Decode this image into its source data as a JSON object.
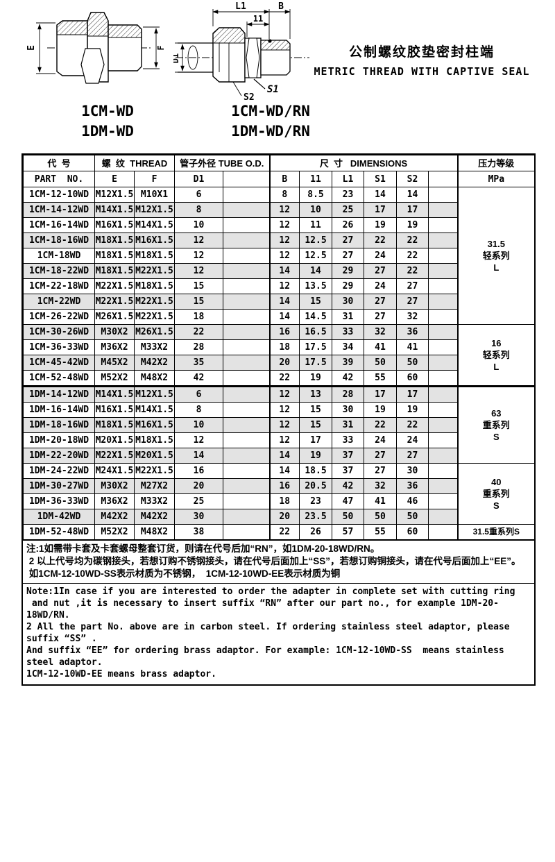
{
  "title": {
    "zh": "公制螺纹胶垫密封柱端",
    "en": "METRIC THREAD WITH CAPTIVE SEAL"
  },
  "drawings": {
    "left_models": [
      "1CM-WD",
      "1DM-WD"
    ],
    "right_models": [
      "1CM-WD/RN",
      "1DM-WD/RN"
    ],
    "dim_labels": {
      "e": "E",
      "f": "F",
      "l1": "L1",
      "l1_small": "11",
      "b": "B",
      "d1": "D1",
      "s1": "S1",
      "s2": "S2"
    }
  },
  "table": {
    "header": {
      "part_no_zh": "代  号",
      "part_no_en": "PART  NO.",
      "thread": "螺  纹  THREAD",
      "tube_od": "管子外径 TUBE O.D.",
      "dimensions": "尺  寸   DIMENSIONS",
      "pressure_zh": "压力等级",
      "pressure_en": "MPa",
      "sub": [
        "E",
        "F",
        "D1",
        "",
        "B",
        "11",
        "L1",
        "S1",
        "S2",
        ""
      ]
    },
    "rows": [
      {
        "part_no": "1CM-12-10WD",
        "e": "M12X1.5",
        "f": "M10X1",
        "d1": "6",
        "b": "8",
        "l1s": "8.5",
        "l1": "23",
        "s1": "14",
        "s2": "14"
      },
      {
        "part_no": "1CM-14-12WD",
        "e": "M14X1.5",
        "f": "M12X1.5",
        "d1": "8",
        "b": "12",
        "l1s": "10",
        "l1": "25",
        "s1": "17",
        "s2": "17"
      },
      {
        "part_no": "1CM-16-14WD",
        "e": "M16X1.5",
        "f": "M14X1.5",
        "d1": "10",
        "b": "12",
        "l1s": "11",
        "l1": "26",
        "s1": "19",
        "s2": "19"
      },
      {
        "part_no": "1CM-18-16WD",
        "e": "M18X1.5",
        "f": "M16X1.5",
        "d1": "12",
        "b": "12",
        "l1s": "12.5",
        "l1": "27",
        "s1": "22",
        "s2": "22"
      },
      {
        "part_no": "1CM-18WD",
        "e": "M18X1.5",
        "f": "M18X1.5",
        "d1": "12",
        "b": "12",
        "l1s": "12.5",
        "l1": "27",
        "s1": "24",
        "s2": "22"
      },
      {
        "part_no": "1CM-18-22WD",
        "e": "M18X1.5",
        "f": "M22X1.5",
        "d1": "12",
        "b": "14",
        "l1s": "14",
        "l1": "29",
        "s1": "27",
        "s2": "22"
      },
      {
        "part_no": "1CM-22-18WD",
        "e": "M22X1.5",
        "f": "M18X1.5",
        "d1": "15",
        "b": "12",
        "l1s": "13.5",
        "l1": "29",
        "s1": "24",
        "s2": "27"
      },
      {
        "part_no": "1CM-22WD",
        "e": "M22X1.5",
        "f": "M22X1.5",
        "d1": "15",
        "b": "14",
        "l1s": "15",
        "l1": "30",
        "s1": "27",
        "s2": "27"
      },
      {
        "part_no": "1CM-26-22WD",
        "e": "M26X1.5",
        "f": "M22X1.5",
        "d1": "18",
        "b": "14",
        "l1s": "14.5",
        "l1": "31",
        "s1": "27",
        "s2": "32"
      },
      {
        "part_no": "1CM-30-26WD",
        "e": "M30X2",
        "f": "M26X1.5",
        "d1": "22",
        "b": "16",
        "l1s": "16.5",
        "l1": "33",
        "s1": "32",
        "s2": "36"
      },
      {
        "part_no": "1CM-36-33WD",
        "e": "M36X2",
        "f": "M33X2",
        "d1": "28",
        "b": "18",
        "l1s": "17.5",
        "l1": "34",
        "s1": "41",
        "s2": "41"
      },
      {
        "part_no": "1CM-45-42WD",
        "e": "M45X2",
        "f": "M42X2",
        "d1": "35",
        "b": "20",
        "l1s": "17.5",
        "l1": "39",
        "s1": "50",
        "s2": "50"
      },
      {
        "part_no": "1CM-52-48WD",
        "e": "M52X2",
        "f": "M48X2",
        "d1": "42",
        "b": "22",
        "l1s": "19",
        "l1": "42",
        "s1": "55",
        "s2": "60"
      },
      {
        "part_no": "1DM-14-12WD",
        "e": "M14X1.5",
        "f": "M12X1.5",
        "d1": "6",
        "b": "12",
        "l1s": "13",
        "l1": "28",
        "s1": "17",
        "s2": "17"
      },
      {
        "part_no": "1DM-16-14WD",
        "e": "M16X1.5",
        "f": "M14X1.5",
        "d1": "8",
        "b": "12",
        "l1s": "15",
        "l1": "30",
        "s1": "19",
        "s2": "19"
      },
      {
        "part_no": "1DM-18-16WD",
        "e": "M18X1.5",
        "f": "M16X1.5",
        "d1": "10",
        "b": "12",
        "l1s": "15",
        "l1": "31",
        "s1": "22",
        "s2": "22"
      },
      {
        "part_no": "1DM-20-18WD",
        "e": "M20X1.5",
        "f": "M18X1.5",
        "d1": "12",
        "b": "12",
        "l1s": "17",
        "l1": "33",
        "s1": "24",
        "s2": "24"
      },
      {
        "part_no": "1DM-22-20WD",
        "e": "M22X1.5",
        "f": "M20X1.5",
        "d1": "14",
        "b": "14",
        "l1s": "19",
        "l1": "37",
        "s1": "27",
        "s2": "27"
      },
      {
        "part_no": "1DM-24-22WD",
        "e": "M24X1.5",
        "f": "M22X1.5",
        "d1": "16",
        "b": "14",
        "l1s": "18.5",
        "l1": "37",
        "s1": "27",
        "s2": "30"
      },
      {
        "part_no": "1DM-30-27WD",
        "e": "M30X2",
        "f": "M27X2",
        "d1": "20",
        "b": "16",
        "l1s": "20.5",
        "l1": "42",
        "s1": "32",
        "s2": "36"
      },
      {
        "part_no": "1DM-36-33WD",
        "e": "M36X2",
        "f": "M33X2",
        "d1": "25",
        "b": "18",
        "l1s": "23",
        "l1": "47",
        "s1": "41",
        "s2": "46"
      },
      {
        "part_no": "1DM-42WD",
        "e": "M42X2",
        "f": "M42X2",
        "d1": "30",
        "b": "20",
        "l1s": "23.5",
        "l1": "50",
        "s1": "50",
        "s2": "50"
      },
      {
        "part_no": "1DM-52-48WD",
        "e": "M52X2",
        "f": "M48X2",
        "d1": "38",
        "b": "22",
        "l1s": "26",
        "l1": "57",
        "s1": "55",
        "s2": "60"
      }
    ],
    "pressure_groups": [
      {
        "start": 0,
        "span": 9,
        "lines": [
          "31.5",
          "轻系列",
          "L"
        ]
      },
      {
        "start": 9,
        "span": 4,
        "lines": [
          "16",
          "轻系列",
          "L"
        ]
      },
      {
        "start": 13,
        "span": 5,
        "lines": [
          "63",
          "重系列",
          "S"
        ]
      },
      {
        "start": 18,
        "span": 4,
        "lines": [
          "40",
          "重系列",
          "S"
        ]
      },
      {
        "start": 22,
        "span": 1,
        "lines": [
          "31.5重系列S"
        ],
        "small": true
      }
    ]
  },
  "notes": {
    "zh": [
      "注:1如需带卡套及卡套螺母整套订货，则请在代号后加“RN”，如1DM-20-18WD/RN。",
      " 2 以上代号均为碳钢接头，若想订购不锈钢接头，请在代号后面加上“SS”，若想订购铜接头，请在代号后面加上“EE”。",
      " 如1CM-12-10WD-SS表示材质为不锈钢，  1CM-12-10WD-EE表示材质为铜"
    ],
    "en": [
      "Note:1In case if you are interested to order the adapter in complete set with cutting ring",
      " and nut ,it is necessary to insert suffix “RN” after our part no., for example 1DM-20-18WD/RN.",
      "2 All the part No. above are in carbon steel. If ordering stainless steel adaptor, please suffix “SS” .",
      "And suffix “EE” for ordering brass adaptor. For example: 1CM-12-10WD-SS  means stainless steel adaptor.",
      "1CM-12-10WD-EE means brass adaptor."
    ]
  },
  "colors": {
    "ink": "#000000",
    "row_shade": "#e3e3e3",
    "paper": "#ffffff"
  }
}
